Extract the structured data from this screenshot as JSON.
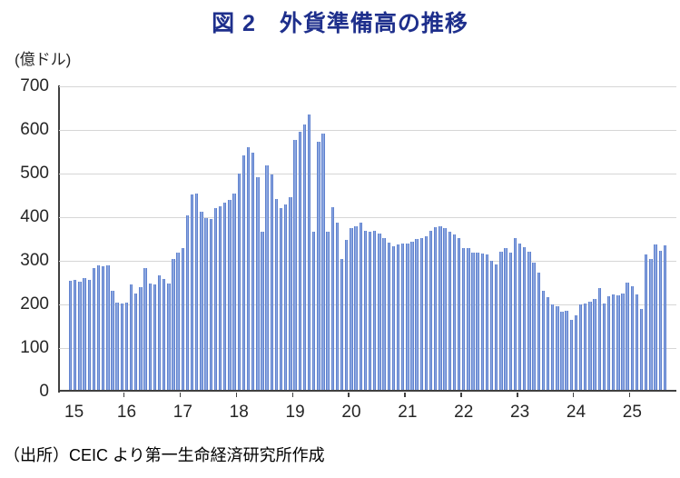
{
  "page": {
    "title": "図 2　外貨準備高の推移",
    "unit_label": "(億ドル)",
    "source": "（出所）CEIC より第一生命経済研究所作成"
  },
  "colors": {
    "title": "#1E2F8C",
    "bar_fill": "#8CA7E0",
    "bar_edge": "#5F81CE",
    "gridline": "#D6D6D6",
    "axis": "#404040"
  },
  "chart_data": {
    "type": "bar",
    "title": "図 2　外貨準備高の推移",
    "ylabel": "(億ドル)",
    "xlabel": "",
    "ylim": [
      0,
      700
    ],
    "y_ticks": [
      0,
      100,
      200,
      300,
      400,
      500,
      600,
      700
    ],
    "grid": true,
    "legend": "none",
    "x_frequency": "monthly",
    "x_start": "2015-01",
    "x_end": "2025-08",
    "x_tick_labels": [
      "15",
      "16",
      "17",
      "18",
      "19",
      "20",
      "21",
      "22",
      "23",
      "24",
      "25"
    ],
    "values_by_year": {
      "2015": [
        254,
        256,
        253,
        261,
        257,
        283,
        289,
        287,
        290,
        232,
        205,
        203
      ],
      "2016": [
        204,
        246,
        224,
        239,
        284,
        247,
        245,
        266,
        258,
        247,
        305,
        318
      ],
      "2017": [
        330,
        405,
        452,
        455,
        413,
        398,
        395,
        421,
        424,
        434,
        440,
        455
      ],
      "2018": [
        500,
        541,
        560,
        547,
        491,
        367,
        519,
        497,
        442,
        421,
        430,
        446
      ],
      "2019": [
        578,
        596,
        613,
        636,
        366,
        572,
        592,
        366,
        423,
        387,
        305,
        348
      ],
      "2020": [
        376,
        380,
        387,
        369,
        367,
        369,
        363,
        353,
        342,
        333,
        337,
        340
      ],
      "2021": [
        340,
        344,
        349,
        353,
        356,
        369,
        377,
        380,
        376,
        367,
        360,
        352
      ],
      "2022": [
        330,
        329,
        319,
        318,
        317,
        315,
        300,
        292,
        321,
        330,
        319,
        353
      ],
      "2023": [
        340,
        332,
        320,
        295,
        272,
        231,
        217,
        200,
        196,
        184,
        186,
        165
      ],
      "2024": [
        176,
        200,
        203,
        207,
        212,
        238,
        203,
        219,
        222,
        221,
        226,
        250
      ],
      "2025": [
        242,
        222,
        189,
        315,
        305,
        338,
        322,
        336
      ]
    }
  }
}
